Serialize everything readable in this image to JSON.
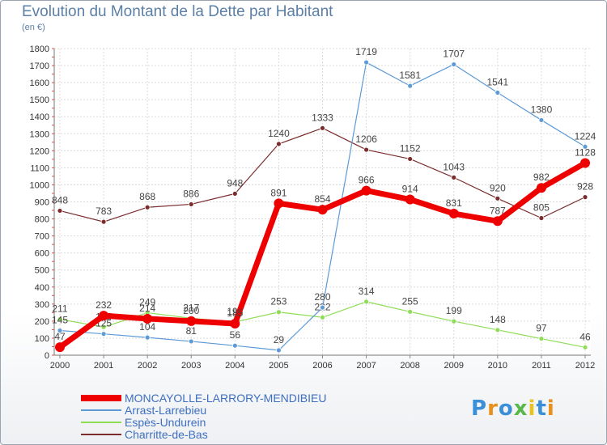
{
  "title": "Evolution du Montant de la Dette par Habitant",
  "subtitle": "(en €)",
  "brand": "Proxiti",
  "chart_data": {
    "type": "line",
    "x": [
      "2000",
      "2001",
      "2002",
      "2003",
      "2004",
      "2005",
      "2006",
      "2007",
      "2008",
      "2009",
      "2010",
      "2011",
      "2012"
    ],
    "ylim": [
      0,
      1800
    ],
    "yticks": [
      "0",
      "100",
      "200",
      "300",
      "400",
      "500",
      "600",
      "700",
      "800",
      "900",
      "1000",
      "1100",
      "1200",
      "1300",
      "1400",
      "1500",
      "1600",
      "1700",
      "1800"
    ],
    "grid": true,
    "legend_position": "bottom-left",
    "series": [
      {
        "name": "Charritte-de-Bas",
        "color": "#7b2c2c",
        "width": 1.2,
        "values": [
          848,
          783,
          868,
          886,
          948,
          1240,
          1333,
          1206,
          1152,
          1043,
          920,
          805,
          928
        ]
      },
      {
        "name": "Espès-Undurein",
        "color": "#8fdc55",
        "width": 1.2,
        "values": [
          211,
          165,
          249,
          217,
          195,
          253,
          222,
          314,
          255,
          199,
          148,
          97,
          46
        ]
      },
      {
        "name": "Arrast-Larrebieu",
        "color": "#5d9ad6",
        "width": 1.2,
        "values": [
          145,
          125,
          104,
          81,
          56,
          29,
          280,
          1719,
          1581,
          1707,
          1541,
          1380,
          1224
        ]
      },
      {
        "name": "MONCAYOLLE-LARRORY-MENDIBIEU",
        "color": "#ee0000",
        "width": 7,
        "values": [
          47,
          232,
          214,
          200,
          185,
          891,
          854,
          966,
          914,
          831,
          787,
          982,
          1128
        ]
      }
    ],
    "legend_order": [
      "MONCAYOLLE-LARRORY-MENDIBIEU",
      "Arrast-Larrebieu",
      "Espès-Undurein",
      "Charritte-de-Bas"
    ]
  }
}
